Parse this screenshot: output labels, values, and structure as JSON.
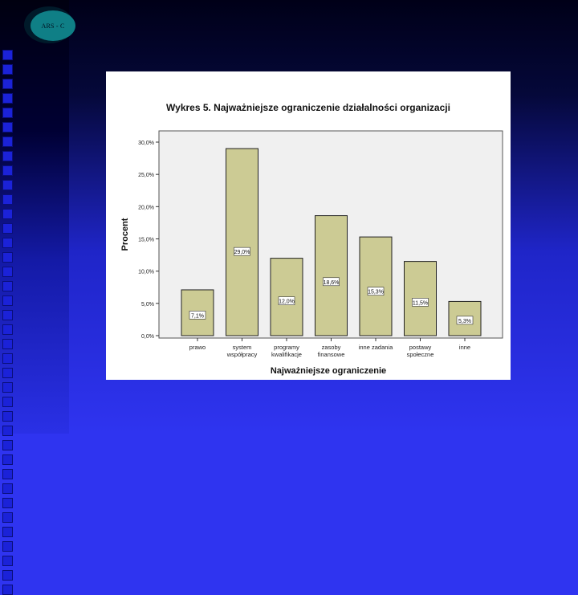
{
  "logo": {
    "text": "ARS - C"
  },
  "chart_data": {
    "type": "bar",
    "title": "Wykres 5. Najważniejsze ograniczenie działalności organizacji",
    "xlabel": "Najważniejsze ograniczenie",
    "ylabel": "Procent",
    "ylim": [
      0,
      30
    ],
    "yticks": [
      "0,0%",
      "5,0%",
      "10,0%",
      "15,0%",
      "20,0%",
      "25,0%",
      "30,0%"
    ],
    "grid": false,
    "categories": [
      [
        "prawo"
      ],
      [
        "system",
        "współpracy"
      ],
      [
        "programy",
        "kwalifikacje"
      ],
      [
        "zasoby",
        "finansowe"
      ],
      [
        "inne zadania"
      ],
      [
        "postawy",
        "społeczne"
      ],
      [
        "inne"
      ]
    ],
    "values": [
      7.1,
      29.0,
      12.0,
      18.6,
      15.3,
      11.5,
      5.3
    ],
    "data_labels": [
      "7,1%",
      "29,0%",
      "12,0%",
      "18,6%",
      "15,3%",
      "11,5%",
      "5,3%"
    ],
    "colors": {
      "bar": "#cccb94",
      "bar_border": "#222222",
      "plot_bg": "#f0f0f0",
      "plot_border": "#555555"
    }
  }
}
